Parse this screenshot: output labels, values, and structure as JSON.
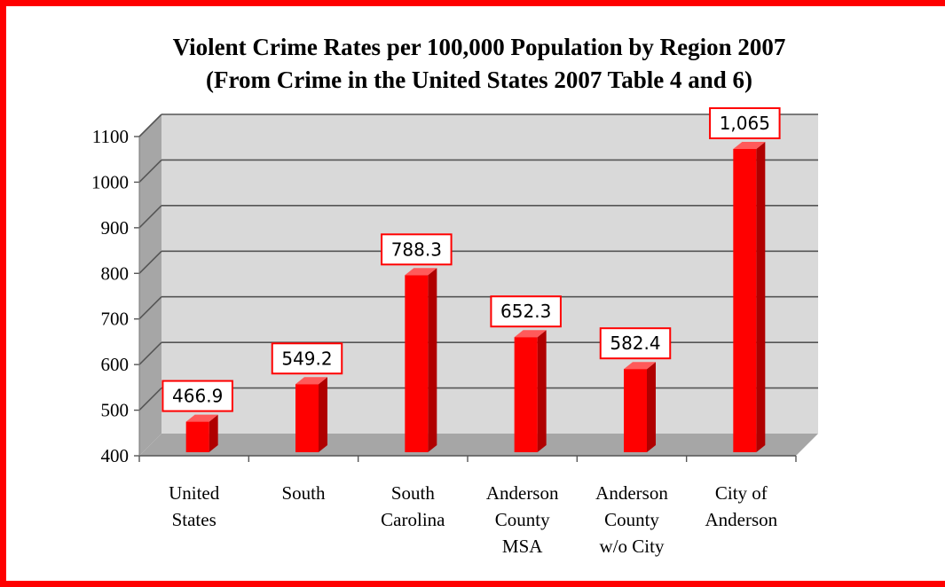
{
  "chart_data": {
    "type": "bar",
    "title": "Violent Crime Rates per 100,000 Population by Region 2007",
    "subtitle": "(From Crime in the United States 2007 Table 4 and 6)",
    "categories": [
      [
        "United",
        "States"
      ],
      [
        "South"
      ],
      [
        "South",
        "Carolina"
      ],
      [
        "Anderson",
        "County",
        "MSA"
      ],
      [
        "Anderson",
        "County",
        "w/o City"
      ],
      [
        "City of",
        "Anderson"
      ]
    ],
    "values": [
      466.9,
      549.2,
      788.3,
      652.3,
      582.4,
      1065
    ],
    "data_labels": [
      "466.9",
      "549.2",
      "788.3",
      "652.3",
      "582.4",
      "1,065"
    ],
    "yticks": [
      400,
      500,
      600,
      700,
      800,
      900,
      1000,
      1100
    ],
    "ylim": [
      400,
      1100
    ],
    "grid": true,
    "colors": {
      "bar": "#ff0000",
      "bar_side": "#b00000",
      "bar_top": "#ff5a5a",
      "wall": "#d9d9d9",
      "wall_side": "#a6a6a6",
      "floor": "#a6a6a6",
      "label_border": "#ff0000",
      "frame": "#ff0000"
    }
  }
}
